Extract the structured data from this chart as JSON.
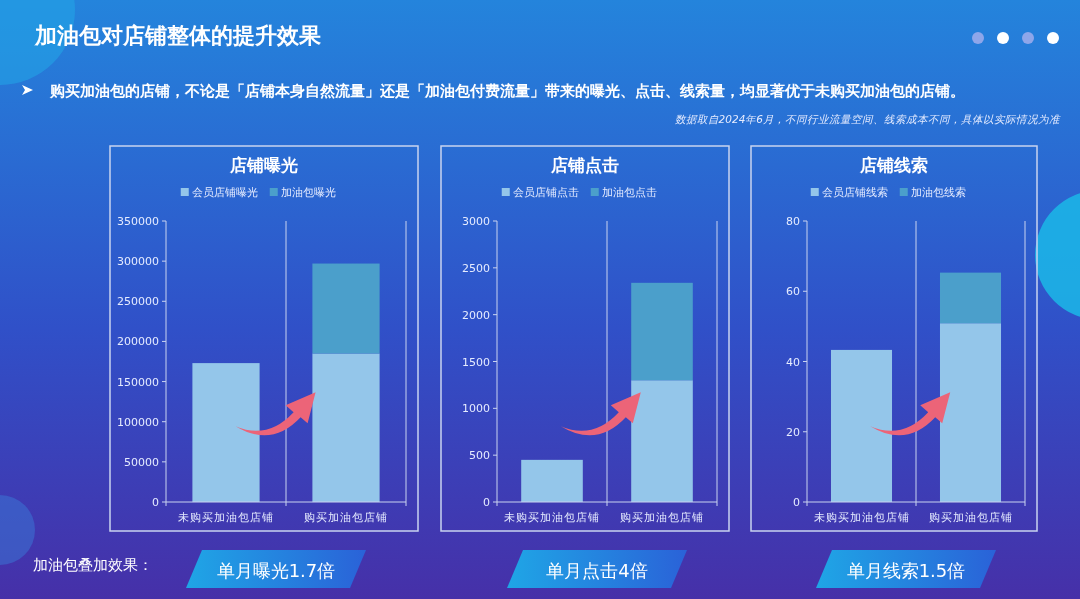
{
  "chart_data": [
    {
      "type": "other",
      "title": "加油包对店铺整体的提升效果",
      "subtitle": "购买加油包的店铺，不论是「店铺本身自然流量」还是「加油包付费流量」带来的曝光、点击、线索量，均显著优于未购买加油包的店铺。",
      "annotations": [
        "数据取自2024年6月，不同行业流量空间、线索成本不同，具体以实际情况为准",
        "加油包叠加效果："
      ]
    },
    {
      "type": "bar",
      "title": "店铺曝光",
      "categories": [
        "未购买加油包店铺",
        "购买加油包店铺"
      ],
      "stacked": true,
      "legend": "top",
      "grid": "x",
      "series": [
        {
          "name": "会员店铺曝光",
          "color": "#94c6ea",
          "values": [
            173000,
            185000
          ]
        },
        {
          "name": "加油包曝光",
          "color": "#4b9fcb",
          "values": [
            null,
            112000
          ]
        }
      ],
      "ylim": [
        0,
        350000
      ],
      "yticks": [
        0,
        50000,
        100000,
        150000,
        200000,
        250000,
        300000,
        350000
      ],
      "annotations": [
        "单月曝光1.7倍"
      ]
    },
    {
      "type": "bar",
      "title": "店铺点击",
      "categories": [
        "未购买加油包店铺",
        "购买加油包店铺"
      ],
      "stacked": true,
      "legend": "top",
      "grid": "x",
      "series": [
        {
          "name": "会员店铺点击",
          "color": "#94c6ea",
          "values": [
            450,
            1300
          ]
        },
        {
          "name": "加油包点击",
          "color": "#4b9fcb",
          "values": [
            null,
            1040
          ]
        }
      ],
      "ylim": [
        0,
        3000
      ],
      "yticks": [
        0,
        500,
        1000,
        1500,
        2000,
        2500,
        3000
      ],
      "annotations": [
        "单月点击4倍"
      ]
    },
    {
      "type": "bar",
      "title": "店铺线索",
      "categories": [
        "未购买加油包店铺",
        "购买加油包店铺"
      ],
      "stacked": true,
      "legend": "top",
      "grid": "x",
      "series": [
        {
          "name": "会员店铺线索",
          "color": "#94c6ea",
          "values": [
            43.3,
            50.9
          ]
        },
        {
          "name": "加油包线索",
          "color": "#4b9fcb",
          "values": [
            null,
            14.4
          ]
        }
      ],
      "ylim": [
        0,
        80
      ],
      "yticks": [
        0,
        20,
        40,
        60,
        80
      ],
      "annotations": [
        "单月线索1.5倍"
      ]
    }
  ]
}
